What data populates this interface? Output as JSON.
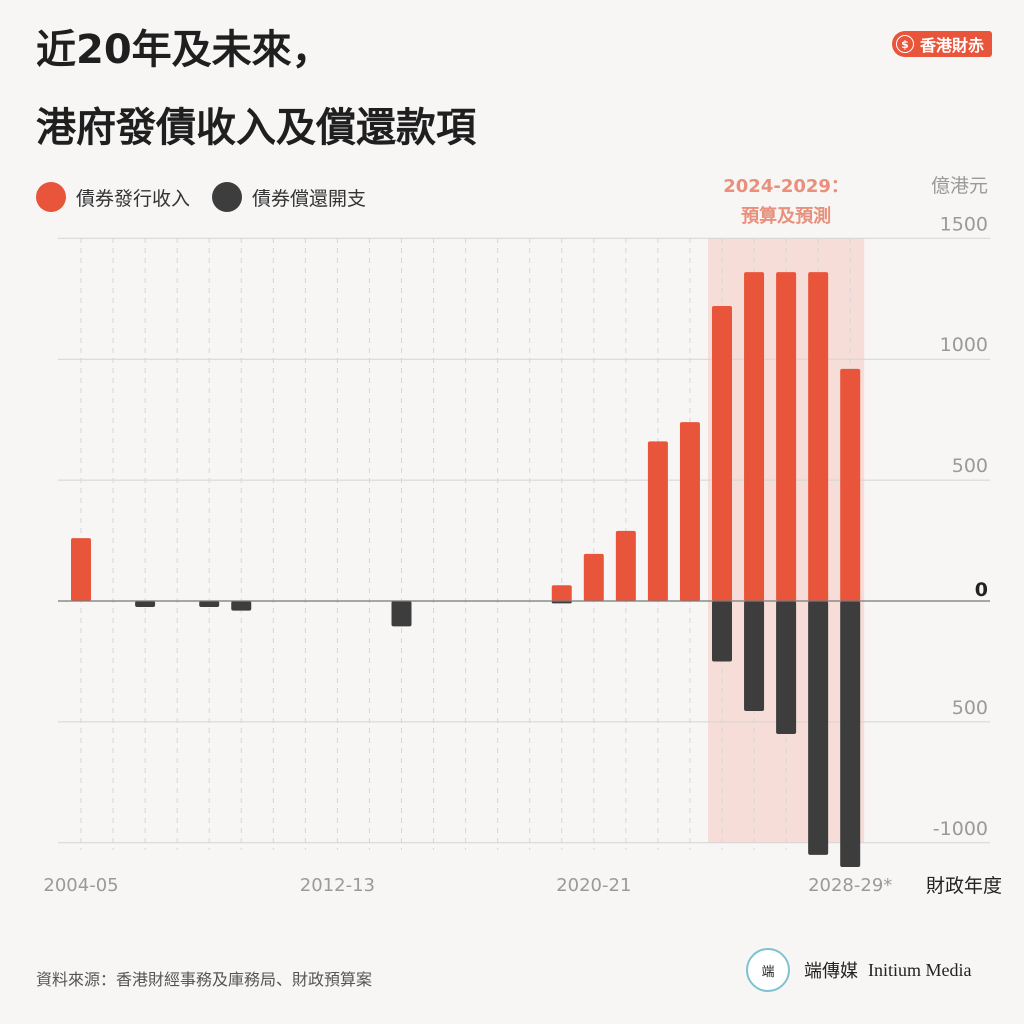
{
  "title_line1": "近20年及未來，",
  "title_line2": "港府發債收入及償還款項",
  "brand": {
    "label": "香港財赤",
    "icon": "dollar-coin-icon",
    "color": "#e8553a"
  },
  "legend": [
    {
      "label": "債券發行收入",
      "color": "#e8553a"
    },
    {
      "label": "債券償還開支",
      "color": "#3d3d3d"
    }
  ],
  "source": "資料來源：香港財經事務及庫務局、財政預算案",
  "logo": {
    "chinese": "端傳媒",
    "english": "Initium Media",
    "mark": "端"
  },
  "chart_data": {
    "type": "bar",
    "unit_label": "億港元",
    "x_axis_label": "財政年度",
    "x_tick_labels": [
      "2004-05",
      "2012-13",
      "2020-21",
      "2028-29*"
    ],
    "categories": [
      "2004-05",
      "2005-06",
      "2006-07",
      "2007-08",
      "2008-09",
      "2009-10",
      "2010-11",
      "2011-12",
      "2012-13",
      "2013-14",
      "2014-15",
      "2015-16",
      "2016-17",
      "2017-18",
      "2018-19",
      "2019-20",
      "2020-21",
      "2021-22",
      "2022-23",
      "2023-24",
      "2024-25",
      "2025-26",
      "2026-27",
      "2027-28",
      "2028-29"
    ],
    "y_ticks": [
      {
        "value": 1500,
        "label": "1500"
      },
      {
        "value": 1000,
        "label": "1000"
      },
      {
        "value": 500,
        "label": "500"
      },
      {
        "value": 0,
        "label": "0"
      },
      {
        "value": -500,
        "label": "500"
      },
      {
        "value": -1000,
        "label": "-1000"
      }
    ],
    "ylim": [
      -1100,
      1500
    ],
    "highlight": {
      "label_line1": "2024-2029：",
      "label_line2": "預算及預測",
      "from": "2024-25",
      "to": "2028-29",
      "color": "#f6ddd8"
    },
    "series": [
      {
        "name": "債券發行收入",
        "color": "#e8553a",
        "values": [
          260,
          0,
          0,
          0,
          0,
          0,
          0,
          0,
          0,
          0,
          0,
          0,
          0,
          0,
          0,
          65,
          195,
          290,
          660,
          740,
          1220,
          1360,
          1360,
          1360,
          960
        ]
      },
      {
        "name": "債券償還開支",
        "color": "#3d3d3d",
        "values": [
          0,
          0,
          -25,
          0,
          -25,
          -40,
          0,
          0,
          0,
          0,
          -105,
          0,
          0,
          0,
          0,
          -10,
          0,
          0,
          0,
          0,
          -250,
          -455,
          -550,
          -1050,
          -1100
        ]
      }
    ]
  }
}
